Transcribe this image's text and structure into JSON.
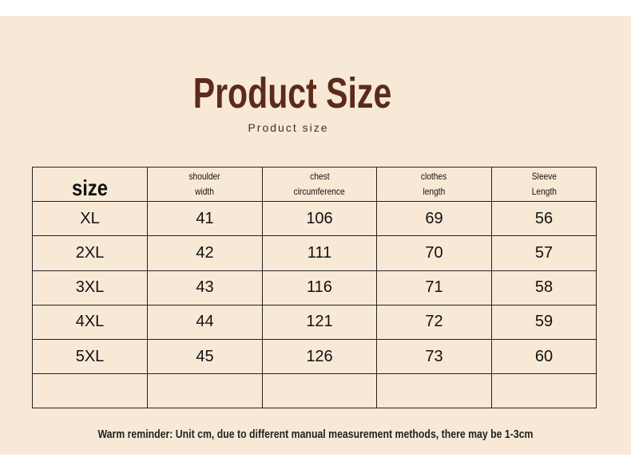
{
  "header": {
    "title": "Product Size",
    "subtitle": "Product size"
  },
  "table": {
    "columns": [
      [
        "size"
      ],
      [
        "shoulder",
        "width"
      ],
      [
        "chest",
        "circumference"
      ],
      [
        "clothes",
        "length"
      ],
      [
        "Sleeve",
        "Length"
      ]
    ],
    "rows": [
      [
        "XL",
        41,
        106,
        69,
        56
      ],
      [
        "2XL",
        42,
        111,
        70,
        57
      ],
      [
        "3XL",
        43,
        116,
        71,
        58
      ],
      [
        "4XL",
        44,
        121,
        72,
        59
      ],
      [
        "5XL",
        45,
        126,
        73,
        60
      ]
    ]
  },
  "footer": {
    "note": "Warm reminder: Unit cm, due to different manual measurement methods, there may be 1-3cm"
  }
}
